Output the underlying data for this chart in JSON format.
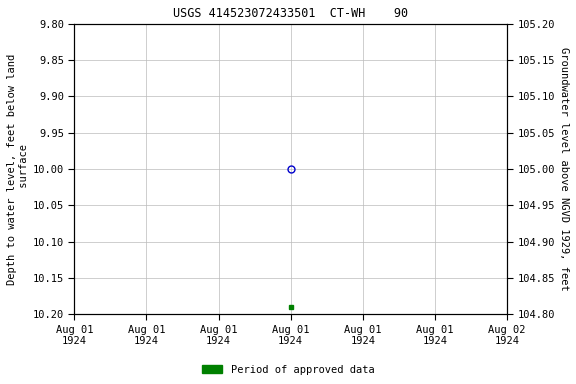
{
  "title": "USGS 414523072433501  CT-WH    90",
  "ylabel_left": "Depth to water level, feet below land\n surface",
  "ylabel_right": "Groundwater level above NGVD 1929, feet",
  "xlabel_dates": [
    "Aug 01\n1924",
    "Aug 01\n1924",
    "Aug 01\n1924",
    "Aug 01\n1924",
    "Aug 01\n1924",
    "Aug 01\n1924",
    "Aug 02\n1924"
  ],
  "ylim_left": [
    10.2,
    9.8
  ],
  "ylim_right": [
    104.8,
    105.2
  ],
  "yticks_left": [
    9.8,
    9.85,
    9.9,
    9.95,
    10.0,
    10.05,
    10.1,
    10.15,
    10.2
  ],
  "yticks_right": [
    105.2,
    105.15,
    105.1,
    105.05,
    105.0,
    104.95,
    104.9,
    104.85,
    104.8
  ],
  "data_point_x": 3.0,
  "data_point_y": 10.0,
  "data_point_color": "#0000cc",
  "data_point_marker": "o",
  "data_point_fillstyle": "none",
  "data_point_markersize": 5,
  "green_point_x": 3.0,
  "green_point_y": 10.19,
  "green_point_color": "#008000",
  "green_point_marker": "s",
  "green_point_markersize": 3,
  "legend_label": "Period of approved data",
  "legend_color": "#008000",
  "bg_color": "#ffffff",
  "grid_color": "#bbbbbb",
  "num_xticks": 7,
  "xlim": [
    0,
    6
  ],
  "title_fontsize": 8.5,
  "tick_fontsize": 7.5,
  "label_fontsize": 7.5
}
